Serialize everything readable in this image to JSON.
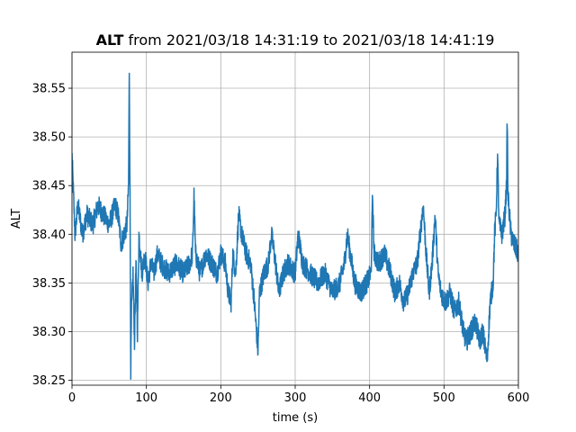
{
  "chart_data": {
    "type": "line",
    "title_bold": "ALT",
    "title_rest": " from 2021/03/18 14:31:19 to 2021/03/18 14:41:19",
    "xlabel": "time (s)",
    "ylabel": "ALT",
    "xlim": [
      0,
      600
    ],
    "ylim": [
      38.245,
      38.587
    ],
    "xticks": [
      0,
      100,
      200,
      300,
      400,
      500,
      600
    ],
    "xtick_labels": [
      "0",
      "100",
      "200",
      "300",
      "400",
      "500",
      "600"
    ],
    "yticks": [
      38.25,
      38.3,
      38.35,
      38.4,
      38.45,
      38.5,
      38.55
    ],
    "ytick_labels": [
      "38.25",
      "38.30",
      "38.35",
      "38.40",
      "38.45",
      "38.50",
      "38.55"
    ],
    "grid": true,
    "line_color": "#1f77b4",
    "keyframes": [
      [
        0,
        38.48
      ],
      [
        2,
        38.44
      ],
      [
        4,
        38.4
      ],
      [
        8,
        38.43
      ],
      [
        14,
        38.4
      ],
      [
        20,
        38.42
      ],
      [
        28,
        38.41
      ],
      [
        35,
        38.43
      ],
      [
        42,
        38.42
      ],
      [
        50,
        38.41
      ],
      [
        58,
        38.43
      ],
      [
        62,
        38.42
      ],
      [
        66,
        38.39
      ],
      [
        70,
        38.4
      ],
      [
        74,
        38.41
      ],
      [
        76,
        38.45
      ],
      [
        77,
        38.57
      ],
      [
        78,
        38.44
      ],
      [
        79,
        38.26
      ],
      [
        80,
        38.32
      ],
      [
        82,
        38.36
      ],
      [
        84,
        38.29
      ],
      [
        86,
        38.37
      ],
      [
        88,
        38.3
      ],
      [
        90,
        38.4
      ],
      [
        94,
        38.36
      ],
      [
        98,
        38.38
      ],
      [
        102,
        38.35
      ],
      [
        106,
        38.37
      ],
      [
        110,
        38.36
      ],
      [
        115,
        38.38
      ],
      [
        120,
        38.37
      ],
      [
        130,
        38.36
      ],
      [
        140,
        38.37
      ],
      [
        150,
        38.36
      ],
      [
        158,
        38.37
      ],
      [
        162,
        38.38
      ],
      [
        164,
        38.44
      ],
      [
        166,
        38.38
      ],
      [
        172,
        38.36
      ],
      [
        180,
        38.38
      ],
      [
        188,
        38.37
      ],
      [
        195,
        38.36
      ],
      [
        200,
        38.38
      ],
      [
        206,
        38.37
      ],
      [
        210,
        38.34
      ],
      [
        214,
        38.33
      ],
      [
        216,
        38.38
      ],
      [
        220,
        38.36
      ],
      [
        224,
        38.42
      ],
      [
        228,
        38.4
      ],
      [
        234,
        38.38
      ],
      [
        240,
        38.37
      ],
      [
        244,
        38.34
      ],
      [
        248,
        38.3
      ],
      [
        250,
        38.28
      ],
      [
        252,
        38.34
      ],
      [
        258,
        38.36
      ],
      [
        264,
        38.37
      ],
      [
        268,
        38.4
      ],
      [
        272,
        38.38
      ],
      [
        278,
        38.34
      ],
      [
        284,
        38.36
      ],
      [
        290,
        38.37
      ],
      [
        300,
        38.36
      ],
      [
        304,
        38.4
      ],
      [
        310,
        38.37
      ],
      [
        320,
        38.36
      ],
      [
        330,
        38.35
      ],
      [
        340,
        38.36
      ],
      [
        350,
        38.34
      ],
      [
        360,
        38.35
      ],
      [
        366,
        38.37
      ],
      [
        370,
        38.4
      ],
      [
        374,
        38.38
      ],
      [
        380,
        38.35
      ],
      [
        388,
        38.34
      ],
      [
        396,
        38.35
      ],
      [
        402,
        38.36
      ],
      [
        404,
        38.44
      ],
      [
        406,
        38.38
      ],
      [
        412,
        38.37
      ],
      [
        420,
        38.38
      ],
      [
        428,
        38.36
      ],
      [
        434,
        38.34
      ],
      [
        440,
        38.35
      ],
      [
        446,
        38.33
      ],
      [
        452,
        38.34
      ],
      [
        458,
        38.36
      ],
      [
        464,
        38.37
      ],
      [
        468,
        38.4
      ],
      [
        472,
        38.43
      ],
      [
        476,
        38.38
      ],
      [
        480,
        38.34
      ],
      [
        484,
        38.37
      ],
      [
        488,
        38.42
      ],
      [
        492,
        38.36
      ],
      [
        496,
        38.34
      ],
      [
        502,
        38.33
      ],
      [
        508,
        38.34
      ],
      [
        514,
        38.32
      ],
      [
        520,
        38.33
      ],
      [
        526,
        38.3
      ],
      [
        530,
        38.29
      ],
      [
        536,
        38.3
      ],
      [
        542,
        38.31
      ],
      [
        548,
        38.29
      ],
      [
        552,
        38.3
      ],
      [
        556,
        38.28
      ],
      [
        558,
        38.27
      ],
      [
        562,
        38.33
      ],
      [
        566,
        38.35
      ],
      [
        568,
        38.4
      ],
      [
        570,
        38.42
      ],
      [
        572,
        38.48
      ],
      [
        574,
        38.41
      ],
      [
        578,
        38.4
      ],
      [
        582,
        38.42
      ],
      [
        584,
        38.45
      ],
      [
        585,
        38.52
      ],
      [
        586,
        38.44
      ],
      [
        590,
        38.4
      ],
      [
        594,
        38.39
      ],
      [
        600,
        38.38
      ]
    ]
  }
}
